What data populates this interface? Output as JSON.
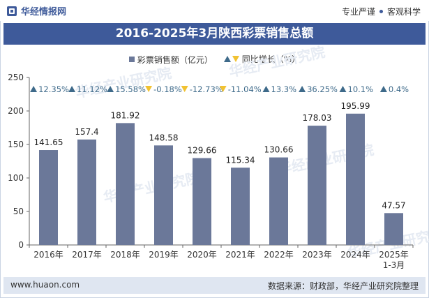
{
  "header": {
    "logo_text": "华经情报网",
    "slogan_left": "专业严谨",
    "slogan_right": "客观科学"
  },
  "title": "2016-2025年3月陕西彩票销售总额",
  "legend": {
    "bar_label": "彩票销售额（亿元）",
    "growth_label": "同比增长（%）"
  },
  "watermark": "华经产业研究院",
  "footer": {
    "url": "www.huaon.com",
    "source": "数据来源：财政部，华经产业研究院整理"
  },
  "colors": {
    "bar": "#6b7899",
    "up": "#3e6a8a",
    "down": "#f1c232",
    "title_bg": "#3e5a9a"
  },
  "chart_data": {
    "type": "bar",
    "categories": [
      "2016年",
      "2017年",
      "2018年",
      "2019年",
      "2020年",
      "2021年",
      "2022年",
      "2023年",
      "2024年",
      "2025年\n1-3月"
    ],
    "series": [
      {
        "name": "彩票销售额（亿元）",
        "values": [
          141.65,
          157.4,
          181.92,
          148.58,
          129.66,
          115.34,
          130.66,
          178.03,
          195.99,
          47.57
        ]
      },
      {
        "name": "同比增长（%）",
        "values": [
          12.35,
          11.12,
          15.58,
          -0.18,
          -12.73,
          -11.04,
          13.3,
          36.25,
          10.1,
          0.4
        ]
      }
    ],
    "value_labels": [
      "141.65",
      "157.4",
      "181.92",
      "148.58",
      "129.66",
      "115.34",
      "130.66",
      "178.03",
      "195.99",
      "47.57"
    ],
    "growth_labels": [
      "12.35%",
      "11.12%",
      "15.58%",
      "-0.18%",
      "-12.73%",
      "-11.04%",
      "13.3%",
      "36.25%",
      "10.1%",
      "0.4%"
    ],
    "yticks": [
      "0",
      "50",
      "100",
      "150",
      "200",
      "250"
    ],
    "ylim": [
      0,
      250
    ]
  }
}
